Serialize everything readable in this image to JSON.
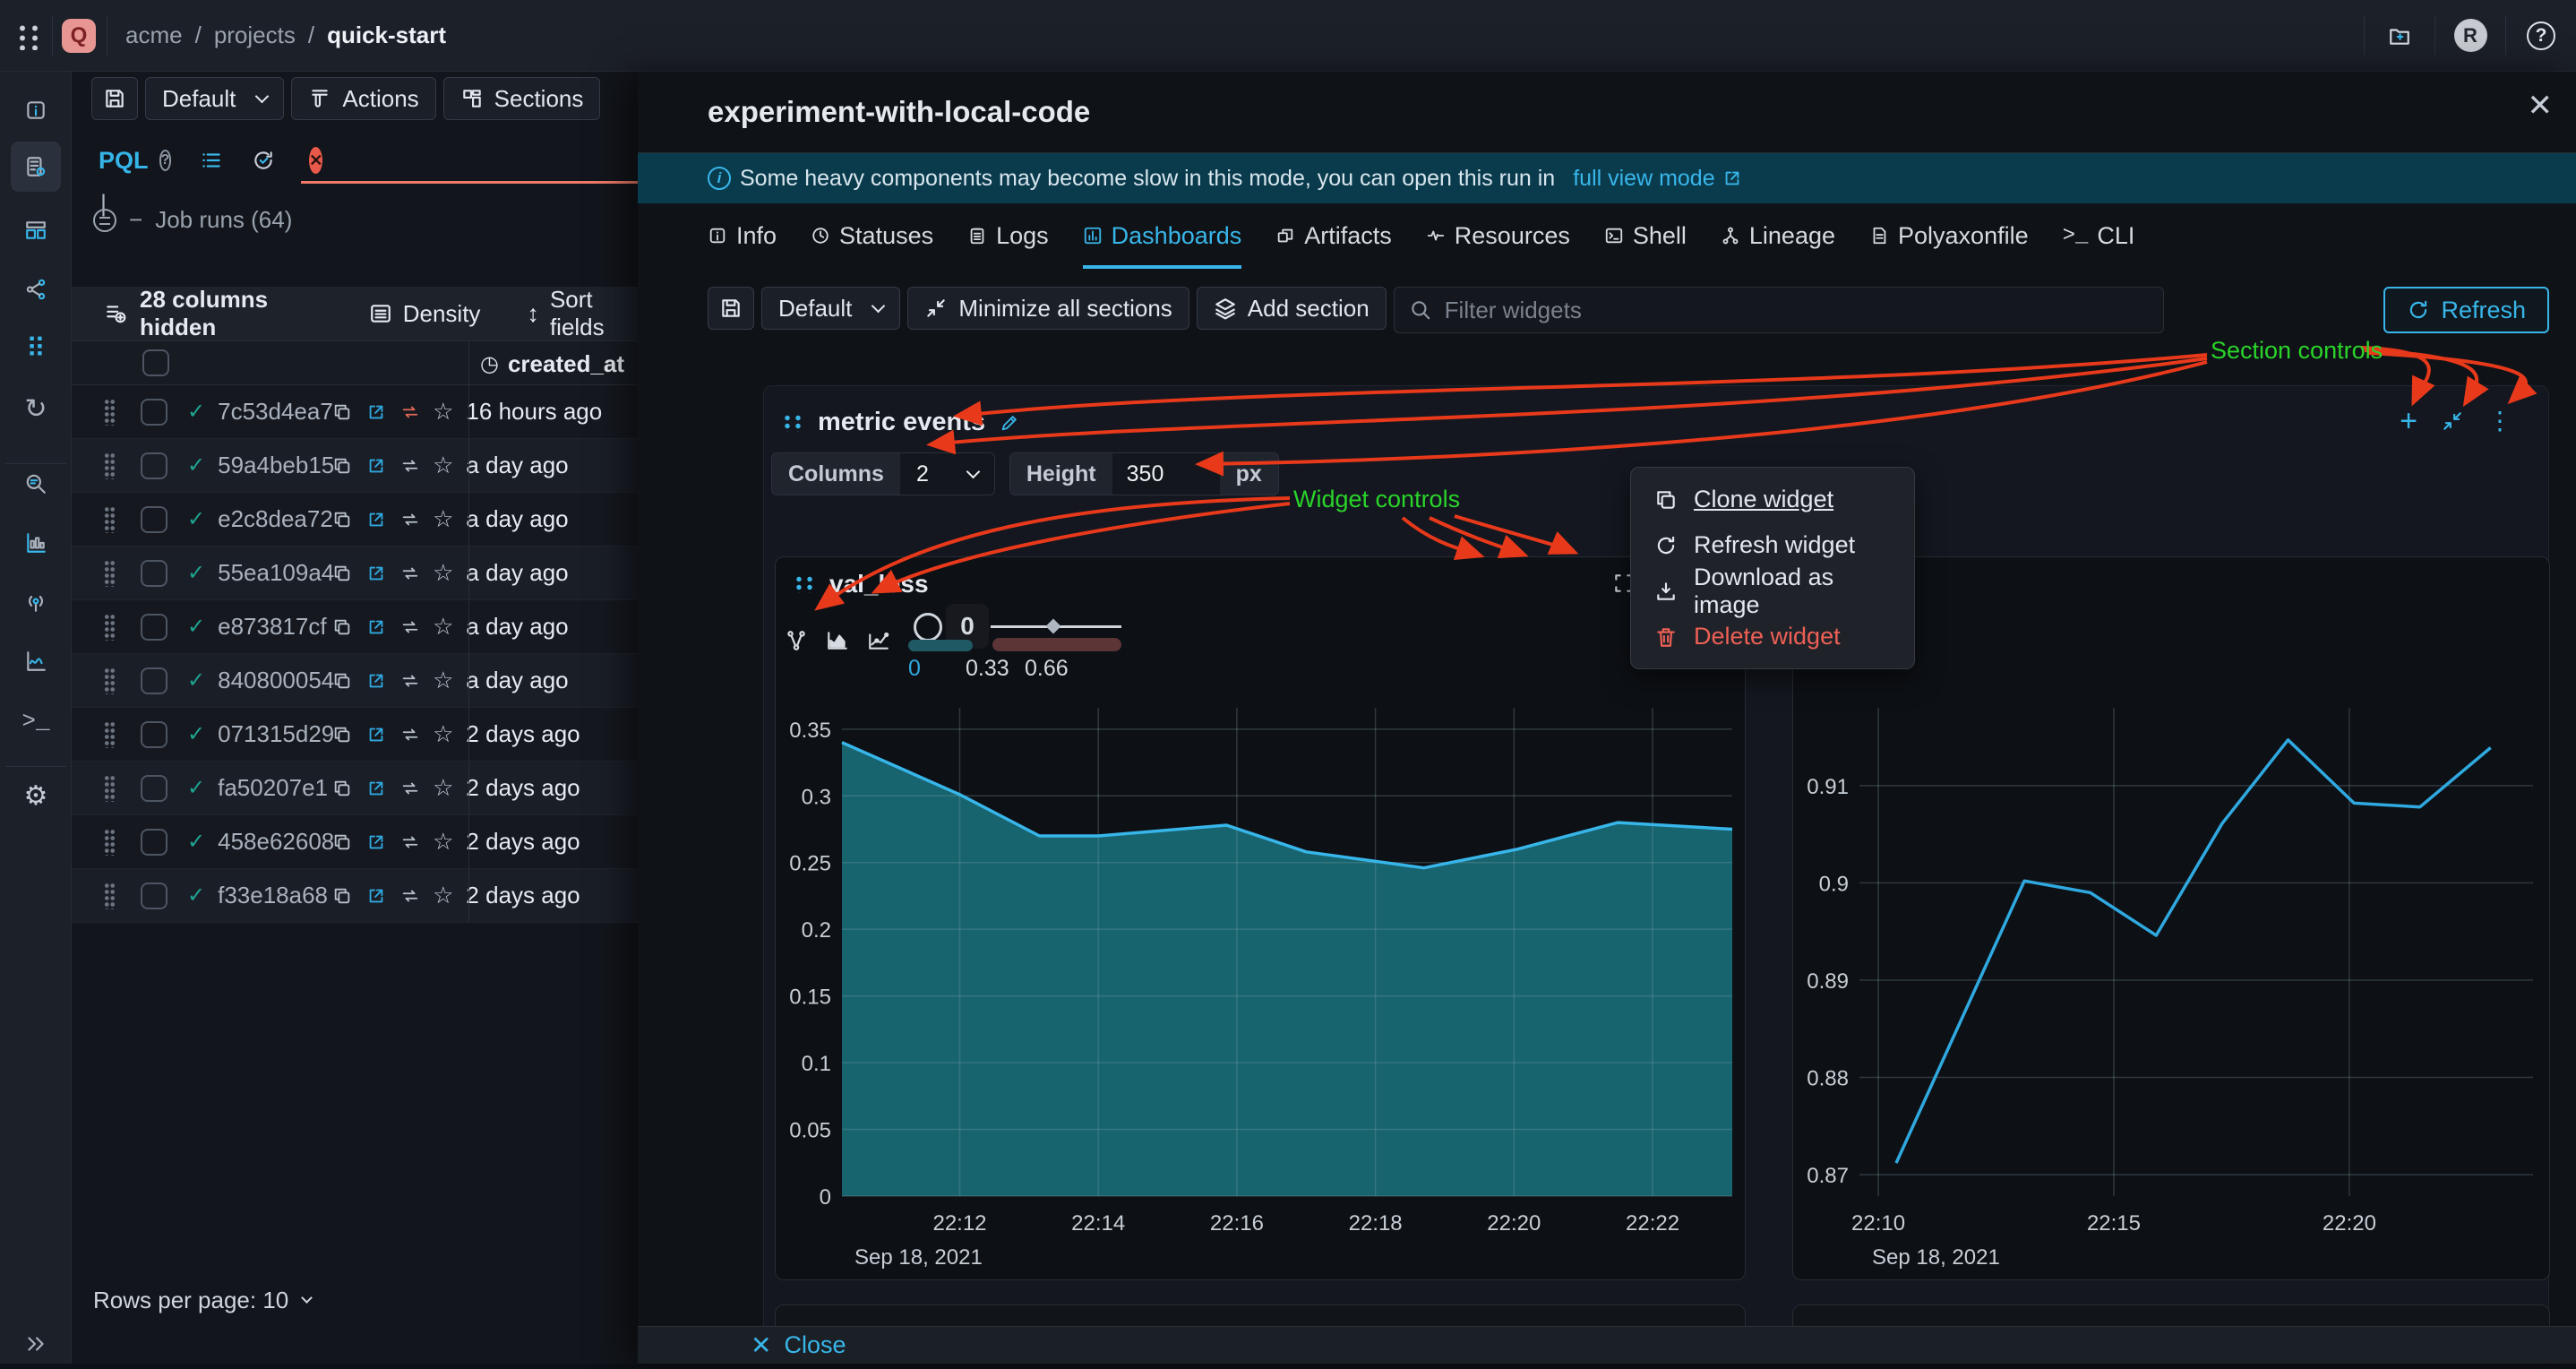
{
  "topbar": {
    "logo": "Q",
    "breadcrumb": {
      "org": "acme",
      "mid": "projects",
      "project": "quick-start",
      "sep": "/"
    },
    "avatar": "R",
    "help": "?"
  },
  "rail": {
    "items": [
      "info-icon",
      "run-config-icon",
      "dashboards-icon",
      "lineage-icon",
      "matrix-icon",
      "sync-icon",
      "query-icon",
      "metrics-icon",
      "events-icon",
      "insights-icon",
      "terminal-icon",
      "settings-icon",
      "expand-sidebar-icon"
    ]
  },
  "left_panel": {
    "toolbar": {
      "default_label": "Default",
      "actions_label": "Actions",
      "sections_label": "Sections"
    },
    "query": {
      "pql": "PQL",
      "help": "?",
      "cursor": "|",
      "minus": "−",
      "job_runs": "Job runs (64)"
    },
    "grid_toolbar": {
      "columns_hidden": "28 columns hidden",
      "density": "Density",
      "sort_fields": "Sort fields"
    },
    "table": {
      "created_at_header": "created_at",
      "rows": [
        {
          "id": "7c53d4ea7",
          "created": "16 hours ago"
        },
        {
          "id": "59a4beb15",
          "created": "a day ago"
        },
        {
          "id": "e2c8dea72",
          "created": "a day ago"
        },
        {
          "id": "55ea109a4",
          "created": "a day ago"
        },
        {
          "id": "e873817cf",
          "created": "a day ago"
        },
        {
          "id": "840800054",
          "created": "a day ago"
        },
        {
          "id": "071315d29",
          "created": "2 days ago"
        },
        {
          "id": "fa50207e1",
          "created": "2 days ago"
        },
        {
          "id": "458e62608",
          "created": "2 days ago"
        },
        {
          "id": "f33e18a68",
          "created": "2 days ago"
        }
      ]
    },
    "pagination": "Rows per page: 10"
  },
  "drawer": {
    "title": "experiment-with-local-code",
    "close_icon": "✕",
    "banner": {
      "text": "Some heavy components may become slow in this mode, you can open this run in",
      "link": "full view mode"
    },
    "tabs": [
      {
        "label": "Info"
      },
      {
        "label": "Statuses"
      },
      {
        "label": "Logs"
      },
      {
        "label": "Dashboards"
      },
      {
        "label": "Artifacts"
      },
      {
        "label": "Resources"
      },
      {
        "label": "Shell"
      },
      {
        "label": "Lineage"
      },
      {
        "label": "Polyaxonfile"
      },
      {
        "label": "CLI"
      }
    ],
    "active_tab": "Dashboards",
    "toolbar": {
      "default_label": "Default",
      "minimize_label": "Minimize all sections",
      "add_section_label": "Add section",
      "filter_placeholder": "Filter widgets",
      "refresh_label": "Refresh"
    },
    "section": {
      "title": "metric events",
      "columns_label": "Columns",
      "columns_value": "2",
      "height_label": "Height",
      "height_value": "350",
      "height_unit": "px"
    },
    "widget": {
      "title": "val_loss",
      "slider": {
        "tooltip": "0",
        "labels": [
          "0",
          "0.33",
          "0.66"
        ]
      }
    },
    "footer": {
      "close": "Close"
    }
  },
  "menu": {
    "items": [
      {
        "label": "Clone widget"
      },
      {
        "label": "Refresh widget"
      },
      {
        "label": "Download as image"
      },
      {
        "label": "Delete widget"
      }
    ]
  },
  "annotations": {
    "section_controls": "Section controls",
    "widget_controls": "Widget controls"
  },
  "colors": {
    "accent": "#38b6ea",
    "annotation_green": "#2ad42a",
    "annotation_red": "#e8391b",
    "danger": "#ee6055",
    "area_fill": "#17636e",
    "banner_bg": "#0a3b4d",
    "error_underline": "#ef7a68"
  },
  "chart_data": [
    {
      "type": "area",
      "title": "val_loss",
      "x": [
        10.3,
        12.0,
        13.15,
        14.0,
        15.85,
        17.0,
        18.7,
        20.05,
        21.5,
        23.15
      ],
      "y": [
        0.34,
        0.301,
        0.27,
        0.27,
        0.278,
        0.258,
        0.246,
        0.26,
        0.28,
        0.275
      ],
      "xlim": [
        10.3,
        23.15
      ],
      "ylim": [
        0,
        0.366
      ],
      "yticks": [
        {
          "v": 0,
          "label": "0"
        },
        {
          "v": 0.05,
          "label": "0.05"
        },
        {
          "v": 0.1,
          "label": "0.1"
        },
        {
          "v": 0.15,
          "label": "0.15"
        },
        {
          "v": 0.2,
          "label": "0.2"
        },
        {
          "v": 0.25,
          "label": "0.25"
        },
        {
          "v": 0.3,
          "label": "0.3"
        },
        {
          "v": 0.35,
          "label": "0.35"
        }
      ],
      "xticks": [
        {
          "v": 12,
          "label": "22:12"
        },
        {
          "v": 14,
          "label": "22:14"
        },
        {
          "v": 16,
          "label": "22:16"
        },
        {
          "v": 18,
          "label": "22:18"
        },
        {
          "v": 20,
          "label": "22:20"
        },
        {
          "v": 22,
          "label": "22:22"
        }
      ],
      "date_label": "Sep 18, 2021",
      "fill": "#17636e",
      "line": "#38b6ea",
      "grid": true,
      "legend": "none"
    },
    {
      "type": "line",
      "title": "",
      "x": [
        10.38,
        13.1,
        14.5,
        15.9,
        17.3,
        18.7,
        20.1,
        21.5,
        23.0
      ],
      "y": [
        0.8712,
        0.9002,
        0.899,
        0.8946,
        0.9061,
        0.9147,
        0.9082,
        0.9078,
        0.9139
      ],
      "xlim": [
        9.6,
        23.9
      ],
      "ylim": [
        0.8678,
        0.918
      ],
      "yticks": [
        {
          "v": 0.87,
          "label": "0.87"
        },
        {
          "v": 0.88,
          "label": "0.88"
        },
        {
          "v": 0.89,
          "label": "0.89"
        },
        {
          "v": 0.9,
          "label": "0.9"
        },
        {
          "v": 0.91,
          "label": "0.91"
        }
      ],
      "xticks": [
        {
          "v": 10,
          "label": "22:10"
        },
        {
          "v": 15,
          "label": "22:15"
        },
        {
          "v": 20,
          "label": "22:20"
        }
      ],
      "date_label": "Sep 18, 2021",
      "fill": "none",
      "line": "#2fa9e0",
      "grid": true,
      "legend": "none"
    }
  ]
}
